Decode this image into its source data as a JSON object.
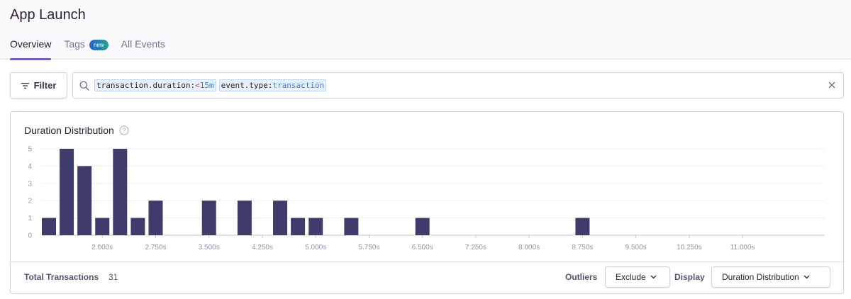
{
  "header": {
    "title": "App Launch",
    "tabs": [
      {
        "label": "Overview",
        "active": true
      },
      {
        "label": "Tags",
        "badge": "new"
      },
      {
        "label": "All Events"
      }
    ]
  },
  "toolbar": {
    "filter_label": "Filter",
    "search_tokens": [
      {
        "key": "transaction.duration:",
        "op": "<",
        "value": "15m"
      },
      {
        "key": "event.type:",
        "op": "",
        "value": "transaction"
      }
    ]
  },
  "panel": {
    "title": "Duration Distribution",
    "footer": {
      "total_label": "Total Transactions",
      "total_value": "31",
      "outliers_label": "Outliers",
      "outliers_value": "Exclude",
      "display_label": "Display",
      "display_value": "Duration Distribution"
    }
  },
  "colors": {
    "bar": "#3e3c6a",
    "accent": "#6c5fc7"
  },
  "chart_data": {
    "type": "bar",
    "bin_width_s": 0.25,
    "bins_start_s": [
      1.25,
      1.5,
      1.75,
      2.0,
      2.25,
      2.5,
      2.75,
      3.0,
      3.25,
      3.5,
      3.75,
      4.0,
      4.25,
      4.5,
      4.75,
      5.0,
      5.25,
      5.5,
      5.75,
      6.0,
      6.25,
      6.5,
      6.75,
      7.0,
      7.25,
      7.5,
      7.75,
      8.0,
      8.25,
      8.5,
      8.75,
      9.0,
      9.25,
      9.5,
      9.75,
      10.0,
      10.25,
      10.5,
      10.75,
      11.0,
      11.25,
      11.5
    ],
    "values": [
      1,
      5,
      4,
      1,
      5,
      1,
      2,
      0,
      0,
      2,
      0,
      2,
      0,
      2,
      1,
      1,
      0,
      1,
      0,
      0,
      0,
      1,
      0,
      0,
      0,
      0,
      0,
      0,
      0,
      0,
      1,
      0,
      0,
      0,
      0,
      0,
      0,
      0,
      0,
      0,
      0,
      0
    ],
    "x_tick_labels": [
      "2.000s",
      "2.750s",
      "3.500s",
      "4.250s",
      "5.000s",
      "5.750s",
      "6.500s",
      "7.250s",
      "8.000s",
      "8.750s",
      "9.500s",
      "10.250s",
      "11.000s"
    ],
    "y_ticks": [
      0,
      1,
      2,
      3,
      4,
      5
    ],
    "ylim": [
      0,
      5
    ],
    "grid": true
  }
}
